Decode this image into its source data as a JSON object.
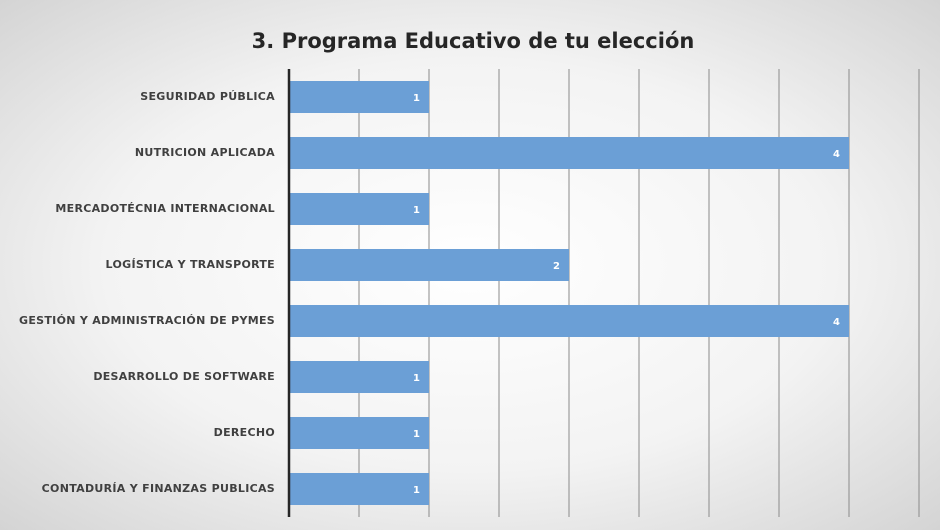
{
  "chart_data": {
    "type": "bar",
    "orientation": "horizontal",
    "title": "3. Programa Educativo de tu elección",
    "categories": [
      "SEGURIDAD PÚBLICA",
      "NUTRICION APLICADA",
      "MERCADOTÉCNIA INTERNACIONAL",
      "LOGÍSTICA Y TRANSPORTE",
      "GESTIÓN Y ADMINISTRACIÓN DE PYMES",
      "DESARROLLO DE SOFTWARE",
      "DERECHO",
      "CONTADURÍA Y FINANZAS PUBLICAS"
    ],
    "values": [
      1,
      4,
      1,
      2,
      4,
      1,
      1,
      1
    ],
    "color": "#6b9fd6",
    "xlim": [
      0,
      4.5
    ],
    "xticks": [
      0,
      0.5,
      1,
      1.5,
      2,
      2.5,
      3,
      3.5,
      4,
      4.5
    ],
    "grid": true
  }
}
